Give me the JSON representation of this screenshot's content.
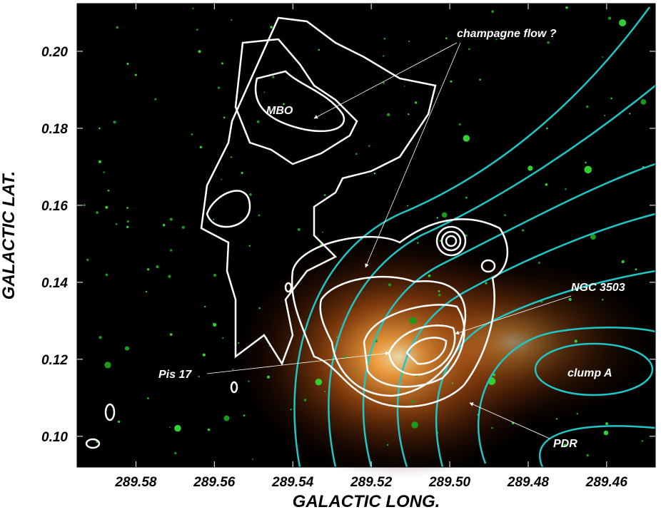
{
  "chart_data": {
    "type": "image",
    "xlabel": "GALACTIC LONG.",
    "ylabel": "GALACTIC LAT.",
    "xlim": [
      289.595,
      289.4476
    ],
    "ylim": [
      0.092,
      0.2124
    ],
    "xticks": [
      289.58,
      289.56,
      289.54,
      289.52,
      {
        "value": 289.5,
        "label": "289.50"
      },
      289.48,
      289.46
    ],
    "yticks": [
      {
        "value": 0.1,
        "label": "0.10"
      },
      0.12,
      0.14,
      0.16,
      0.18,
      {
        "value": 0.2,
        "label": "0.20"
      }
    ],
    "annotations": [
      "champagne flow ?",
      "MBO",
      "NGC 3503",
      "clump A",
      "Pis 17",
      "PDR"
    ]
  }
}
